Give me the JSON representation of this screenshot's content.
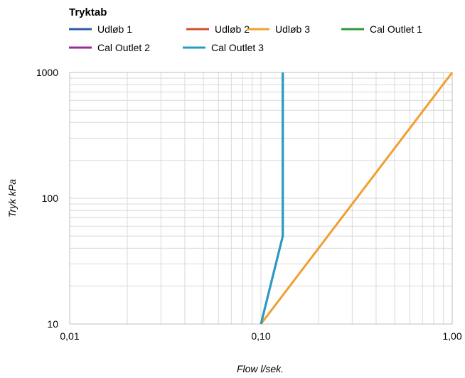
{
  "chart_data": {
    "type": "line",
    "title": "Tryktab",
    "xlabel": "Flow l/sek.",
    "ylabel": "Tryk kPa",
    "x_scale": "log",
    "y_scale": "log",
    "xlim": [
      0.01,
      1.0
    ],
    "ylim": [
      10,
      1000
    ],
    "x_ticks": [
      0.01,
      0.1,
      1.0
    ],
    "x_tick_labels": [
      "0,01",
      "0,10",
      "1,00"
    ],
    "y_ticks": [
      10,
      100,
      1000
    ],
    "y_tick_labels": [
      "10",
      "100",
      "1000"
    ],
    "grid": true,
    "legend_position": "top",
    "series": [
      {
        "name": "Udløb 1",
        "color": "#2E5EA8",
        "x": [
          0.1,
          0.13,
          0.13
        ],
        "y": [
          10,
          50,
          1000
        ]
      },
      {
        "name": "Udløb 2",
        "color": "#D0522A",
        "x": [],
        "y": []
      },
      {
        "name": "Udløb 3",
        "color": "#F0A030",
        "x": [
          0.1,
          1.0
        ],
        "y": [
          10,
          1000
        ]
      },
      {
        "name": "Cal Outlet 1",
        "color": "#2E9A3A",
        "x": [],
        "y": []
      },
      {
        "name": "Cal Outlet 2",
        "color": "#9B2A9B",
        "x": [],
        "y": []
      },
      {
        "name": "Cal Outlet 3",
        "color": "#2A9BC4",
        "x": [
          0.1,
          0.13,
          0.13
        ],
        "y": [
          10,
          50,
          1000
        ]
      }
    ]
  }
}
